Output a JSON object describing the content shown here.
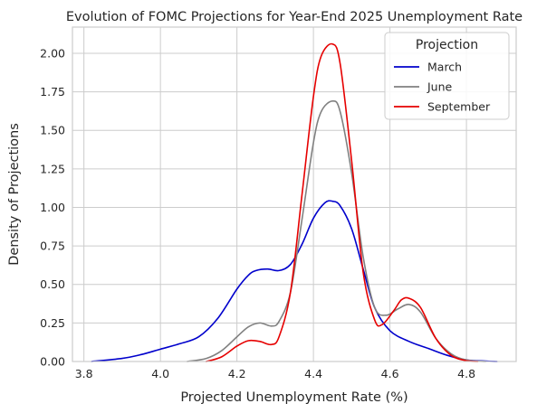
{
  "chart_data": {
    "type": "line",
    "title": "Evolution of FOMC Projections for Year-End 2025 Unemployment Rate",
    "xlabel": "Projected Unemployment Rate (%)",
    "ylabel": "Density of Projections",
    "xlim": [
      3.77,
      4.93
    ],
    "ylim": [
      0.0,
      2.17
    ],
    "xticks": [
      3.8,
      4.0,
      4.2,
      4.4,
      4.6,
      4.8
    ],
    "xtick_labels": [
      "3.8",
      "4.0",
      "4.2",
      "4.4",
      "4.6",
      "4.8"
    ],
    "yticks": [
      0.0,
      0.25,
      0.5,
      0.75,
      1.0,
      1.25,
      1.5,
      1.75,
      2.0
    ],
    "ytick_labels": [
      "0.00",
      "0.25",
      "0.50",
      "0.75",
      "1.00",
      "1.25",
      "1.50",
      "1.75",
      "2.00"
    ],
    "grid": true,
    "legend": {
      "title": "Projection",
      "placement": "top-right"
    },
    "series": [
      {
        "name": "March",
        "color": "#0000cc",
        "x": [
          3.82,
          3.9,
          3.95,
          4.0,
          4.05,
          4.1,
          4.15,
          4.2,
          4.23,
          4.25,
          4.28,
          4.31,
          4.34,
          4.37,
          4.4,
          4.43,
          4.45,
          4.47,
          4.5,
          4.53,
          4.56,
          4.6,
          4.65,
          4.7,
          4.75,
          4.8,
          4.85,
          4.88
        ],
        "y": [
          0.0,
          0.02,
          0.045,
          0.08,
          0.115,
          0.16,
          0.28,
          0.47,
          0.56,
          0.59,
          0.6,
          0.59,
          0.63,
          0.76,
          0.93,
          1.03,
          1.04,
          1.01,
          0.86,
          0.6,
          0.35,
          0.2,
          0.13,
          0.085,
          0.04,
          0.01,
          0.003,
          0.0
        ]
      },
      {
        "name": "June",
        "color": "#808080",
        "x": [
          4.07,
          4.12,
          4.16,
          4.2,
          4.23,
          4.26,
          4.29,
          4.31,
          4.34,
          4.37,
          4.4,
          4.42,
          4.45,
          4.47,
          4.5,
          4.53,
          4.56,
          4.59,
          4.62,
          4.65,
          4.68,
          4.72,
          4.76,
          4.8,
          4.85
        ],
        "y": [
          0.0,
          0.02,
          0.07,
          0.16,
          0.225,
          0.25,
          0.23,
          0.26,
          0.45,
          0.92,
          1.42,
          1.62,
          1.69,
          1.62,
          1.22,
          0.68,
          0.35,
          0.3,
          0.34,
          0.37,
          0.32,
          0.15,
          0.05,
          0.01,
          0.0
        ]
      },
      {
        "name": "September",
        "color": "#e60000",
        "x": [
          4.12,
          4.16,
          4.2,
          4.23,
          4.26,
          4.29,
          4.31,
          4.34,
          4.37,
          4.4,
          4.42,
          4.45,
          4.47,
          4.5,
          4.53,
          4.56,
          4.58,
          4.61,
          4.63,
          4.65,
          4.68,
          4.72,
          4.76,
          4.8,
          4.83
        ],
        "y": [
          0.0,
          0.03,
          0.1,
          0.135,
          0.13,
          0.11,
          0.16,
          0.45,
          1.08,
          1.72,
          1.98,
          2.06,
          1.93,
          1.3,
          0.58,
          0.27,
          0.24,
          0.33,
          0.4,
          0.41,
          0.35,
          0.15,
          0.04,
          0.005,
          0.0
        ]
      }
    ]
  }
}
